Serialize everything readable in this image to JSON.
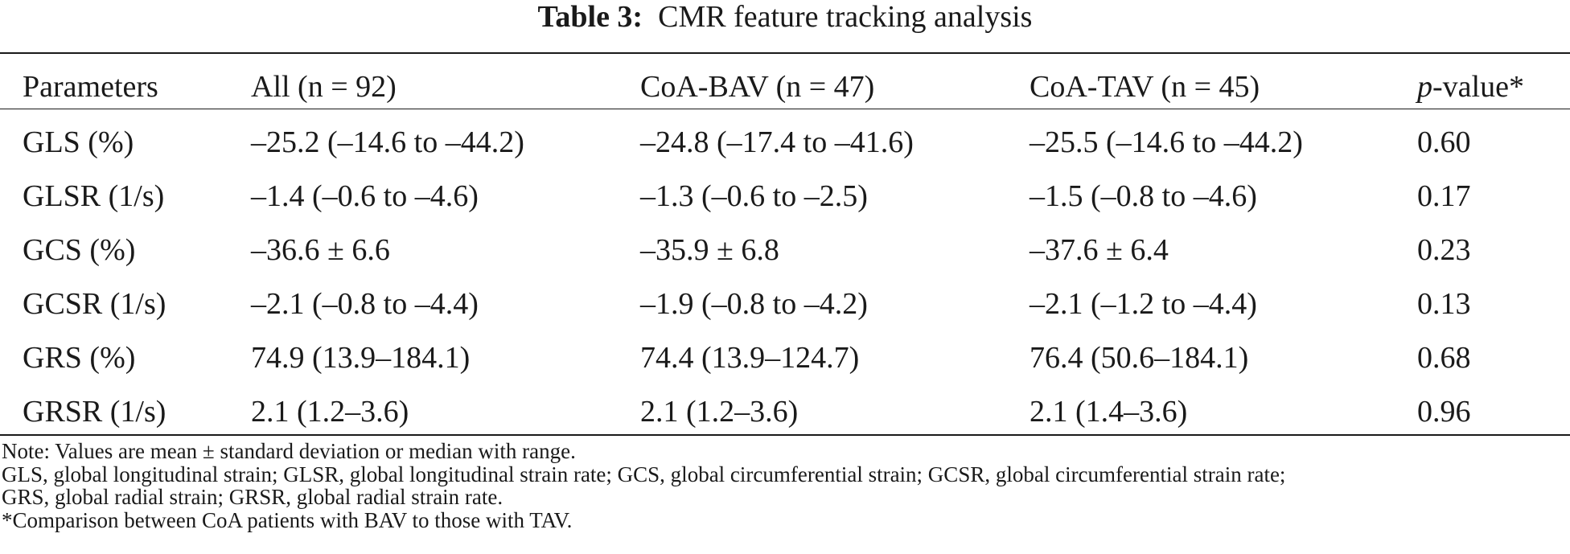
{
  "title": {
    "label": "Table 3:",
    "text": "CMR feature tracking analysis"
  },
  "table": {
    "headers": {
      "parameters": "Parameters",
      "all": "All (n = 92)",
      "coa_bav": "CoA-BAV (n = 47)",
      "coa_tav": "CoA-TAV (n = 45)",
      "p_italic": "p",
      "p_rest": "-value*"
    },
    "rows": [
      {
        "param": "GLS (%)",
        "all": "–25.2 (–14.6 to –44.2)",
        "bav": "–24.8 (–17.4 to –41.6)",
        "tav": "–25.5 (–14.6 to –44.2)",
        "p": "0.60"
      },
      {
        "param": "GLSR (1/s)",
        "all": "–1.4 (–0.6 to –4.6)",
        "bav": "–1.3 (–0.6 to –2.5)",
        "tav": "–1.5 (–0.8 to –4.6)",
        "p": "0.17"
      },
      {
        "param": "GCS (%)",
        "all": "–36.6 ± 6.6",
        "bav": "–35.9 ± 6.8",
        "tav": "–37.6 ± 6.4",
        "p": "0.23"
      },
      {
        "param": "GCSR (1/s)",
        "all": "–2.1 (–0.8 to –4.4)",
        "bav": "–1.9 (–0.8 to –4.2)",
        "tav": "–2.1 (–1.2 to –4.4)",
        "p": "0.13"
      },
      {
        "param": "GRS (%)",
        "all": "74.9 (13.9–184.1)",
        "bav": "74.4 (13.9–124.7)",
        "tav": "76.4 (50.6–184.1)",
        "p": "0.68"
      },
      {
        "param": "GRSR (1/s)",
        "all": "2.1 (1.2–3.6)",
        "bav": "2.1 (1.2–3.6)",
        "tav": "2.1 (1.4–3.6)",
        "p": "0.96"
      }
    ]
  },
  "notes": [
    "Note: Values are mean ± standard deviation or median with range.",
    "GLS, global longitudinal strain; GLSR, global longitudinal strain rate; GCS, global circumferential strain; GCSR, global circumferential strain rate;",
    "GRS, global radial strain; GRSR, global radial strain rate.",
    "*Comparison between CoA patients with BAV to those with TAV."
  ]
}
